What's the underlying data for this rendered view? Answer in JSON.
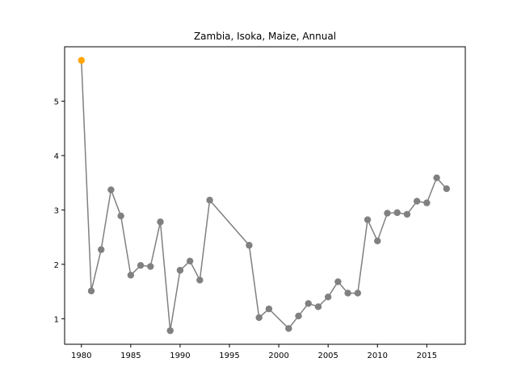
{
  "chart_data": {
    "type": "line",
    "title": "Zambia, Isoka, Maize, Annual",
    "xlabel": "",
    "ylabel": "",
    "xlim": [
      1978.3,
      2018.9
    ],
    "ylim": [
      0.53,
      6.0
    ],
    "x_ticks": [
      1980,
      1985,
      1990,
      1995,
      2000,
      2005,
      2010,
      2015
    ],
    "y_ticks": [
      1,
      2,
      3,
      4,
      5
    ],
    "grid": false,
    "legend": "none",
    "line_color": "#808080",
    "point_color": "#808080",
    "highlight_color": "#ffa500",
    "highlight_index": 0,
    "x": [
      1980,
      1981,
      1982,
      1983,
      1984,
      1985,
      1986,
      1987,
      1988,
      1989,
      1990,
      1991,
      1992,
      1993,
      1997,
      1998,
      1999,
      2001,
      2002,
      2003,
      2004,
      2005,
      2006,
      2007,
      2008,
      2009,
      2010,
      2011,
      2012,
      2013,
      2014,
      2015,
      2016,
      2017
    ],
    "y": [
      5.75,
      1.51,
      2.27,
      3.37,
      2.89,
      1.8,
      1.98,
      1.96,
      2.78,
      0.78,
      1.89,
      2.06,
      1.71,
      3.18,
      2.35,
      1.02,
      1.18,
      0.82,
      1.05,
      1.28,
      1.22,
      1.4,
      1.68,
      1.47,
      1.47,
      2.82,
      2.43,
      2.94,
      2.95,
      2.92,
      3.16,
      3.13,
      3.59,
      3.39
    ]
  }
}
